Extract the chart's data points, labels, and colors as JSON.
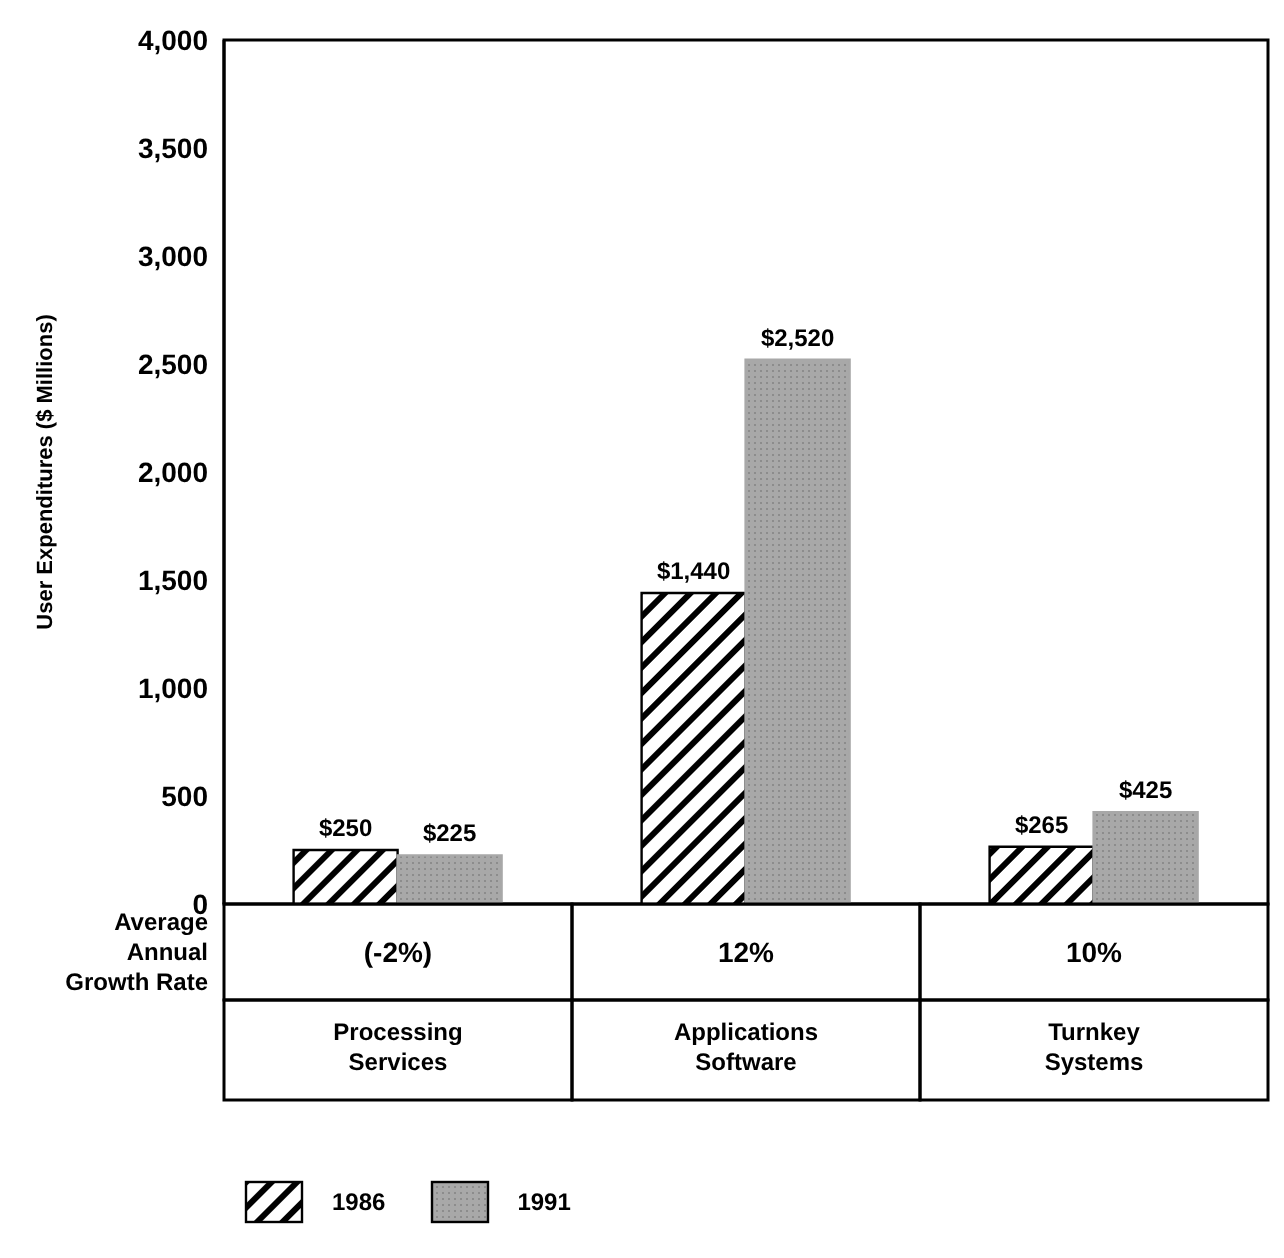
{
  "chart_data": {
    "type": "bar",
    "ylabel": "User Expenditures ($ Millions)",
    "categories": [
      "Processing Services",
      "Applications Software",
      "Turnkey Systems"
    ],
    "series": [
      {
        "name": "1986",
        "color": "#000000",
        "values": [
          250,
          1440,
          265
        ],
        "value_labels": [
          "$250",
          "$1,440",
          "$265"
        ]
      },
      {
        "name": "1991",
        "color": "#a8a8a8",
        "values": [
          225,
          2520,
          425
        ],
        "value_labels": [
          "$225",
          "$2,520",
          "$425"
        ]
      }
    ],
    "ylim": [
      0,
      4000
    ],
    "yticks": [
      0,
      500,
      {
        "value": 1000,
        "label": "1,000"
      },
      {
        "value": 1500,
        "label": "1,500"
      },
      {
        "value": 2000,
        "label": "2,000"
      },
      {
        "value": 2500,
        "label": "2,500"
      },
      {
        "value": 3000,
        "label": "3,000"
      },
      {
        "value": 3500,
        "label": "3,500"
      },
      {
        "value": 4000,
        "label": "4,000"
      }
    ],
    "annotations": [
      "Average Annual Growth Rate",
      "(-2%)",
      "12%",
      "10%"
    ],
    "legend": "bottom left"
  }
}
